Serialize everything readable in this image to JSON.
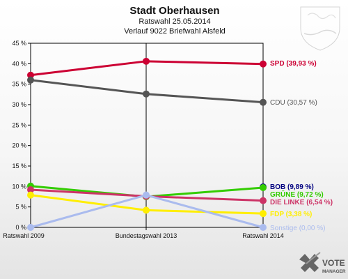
{
  "chart_data": {
    "type": "line",
    "title": "Stadt Oberhausen",
    "subtitle1": "Ratswahl 25.05.2014",
    "subtitle2": "Verlauf 9022 Briefwahl Alsfeld",
    "categories": [
      "Ratswahl 2009",
      "Bundestagswahl 2013",
      "Ratswahl 2014"
    ],
    "ylim": [
      0,
      45
    ],
    "yticks": [
      "0 %",
      "5 %",
      "10 %",
      "15 %",
      "20 %",
      "25 %",
      "30 %",
      "35 %",
      "40 %",
      "45 %"
    ],
    "grid": false,
    "series": [
      {
        "name": "SPD",
        "label": "SPD (39,93 %)",
        "color": "#cc0033",
        "values": [
          37.2,
          40.6,
          39.93
        ]
      },
      {
        "name": "CDU",
        "label": "CDU (30,57 %)",
        "color": "#555555",
        "values": [
          36.0,
          32.6,
          30.57
        ]
      },
      {
        "name": "BOB",
        "label": "BOB (9,89 %)",
        "color": "#000080",
        "values": [
          null,
          null,
          9.89
        ]
      },
      {
        "name": "GRÜNE",
        "label": "GRÜNE (9,72 %)",
        "color": "#33cc00",
        "values": [
          10.1,
          7.5,
          9.72
        ]
      },
      {
        "name": "DIE LINKE",
        "label": "DIE LINKE (6,54 %)",
        "color": "#cc3366",
        "values": [
          9.2,
          7.6,
          6.54
        ]
      },
      {
        "name": "FDP",
        "label": "FDP (3,38 %)",
        "color": "#ffee00",
        "values": [
          7.9,
          4.2,
          3.38
        ]
      },
      {
        "name": "Sonstige",
        "label": "Sonstige (0,00 %)",
        "color": "#aabbee",
        "values": [
          0,
          7.9,
          0
        ]
      }
    ]
  },
  "logo": {
    "text_line1": "VOTE",
    "text_line2": "MANAGER",
    "icon": "check-cross-logo-icon"
  },
  "watermark": {
    "icon": "coat-of-arms-icon"
  }
}
